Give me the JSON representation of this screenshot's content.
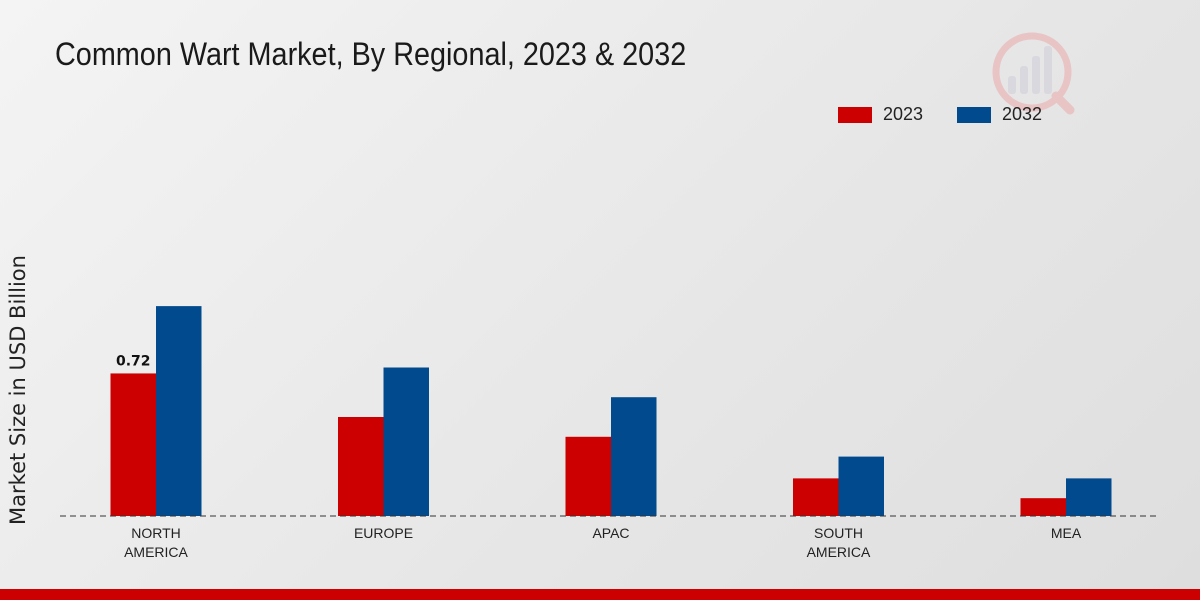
{
  "chart_data": {
    "type": "bar",
    "title": "Common Wart Market, By Regional, 2023 & 2032",
    "xlabel": "",
    "ylabel": "Market Size in USD Billion",
    "categories": [
      "NORTH\nAMERICA",
      "EUROPE",
      "APAC",
      "SOUTH\nAMERICA",
      "MEA"
    ],
    "series": [
      {
        "name": "2023",
        "color": "#cc0000",
        "values": [
          0.72,
          0.5,
          0.4,
          0.19,
          0.09
        ]
      },
      {
        "name": "2032",
        "color": "#004a8d",
        "values": [
          1.06,
          0.75,
          0.6,
          0.3,
          0.19
        ]
      }
    ],
    "data_labels": [
      {
        "series": 0,
        "index": 0,
        "text": "0.72"
      }
    ],
    "ylim": [
      0,
      1.5
    ],
    "grid": false,
    "legend_position": "top-right"
  },
  "colors": {
    "accent": "#cc0000",
    "secondary": "#004a8d"
  }
}
